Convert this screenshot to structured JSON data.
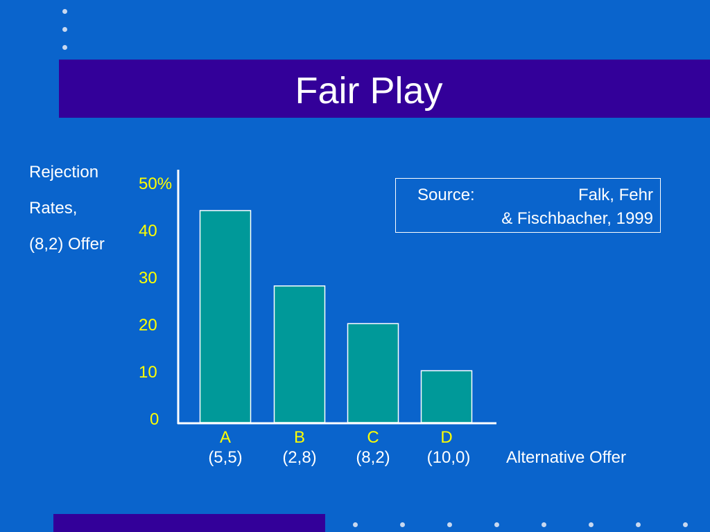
{
  "title": "Fair Play",
  "colors": {
    "background": "#0a64cc",
    "title_bar": "#330099",
    "bar": "#009999",
    "tick_labels": "#ffff00"
  },
  "chart_data": {
    "type": "bar",
    "ylabel_lines": [
      "Rejection",
      "Rates,",
      "(8,2) Offer"
    ],
    "xlabel": "Alternative Offer",
    "categories": [
      "A",
      "B",
      "C",
      "D"
    ],
    "category_sublabels": [
      "(5,5)",
      "(2,8)",
      "(8,2)",
      "(10,0)"
    ],
    "values": [
      45,
      29,
      21,
      11
    ],
    "yticks": [
      "0",
      "10",
      "20",
      "30",
      "40",
      "50%"
    ],
    "ylim": [
      0,
      50
    ],
    "grid": false
  },
  "source": {
    "label": "Source:",
    "line1": "Falk, Fehr",
    "line2": "& Fischbacher, 1999"
  }
}
